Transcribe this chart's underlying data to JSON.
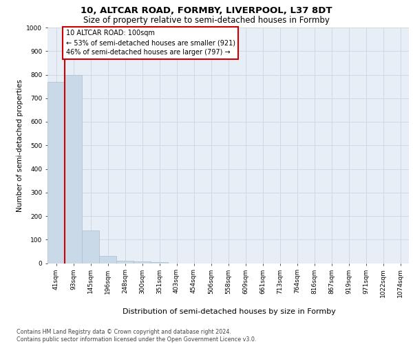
{
  "title1": "10, ALTCAR ROAD, FORMBY, LIVERPOOL, L37 8DT",
  "title2": "Size of property relative to semi-detached houses in Formby",
  "xlabel": "Distribution of semi-detached houses by size in Formby",
  "ylabel": "Number of semi-detached properties",
  "categories": [
    "41sqm",
    "93sqm",
    "145sqm",
    "196sqm",
    "248sqm",
    "300sqm",
    "351sqm",
    "403sqm",
    "454sqm",
    "506sqm",
    "558sqm",
    "609sqm",
    "661sqm",
    "713sqm",
    "764sqm",
    "816sqm",
    "867sqm",
    "919sqm",
    "971sqm",
    "1022sqm",
    "1074sqm"
  ],
  "values": [
    770,
    800,
    140,
    30,
    10,
    7,
    5,
    0,
    0,
    0,
    0,
    0,
    0,
    0,
    0,
    0,
    0,
    0,
    0,
    0,
    0
  ],
  "bar_color": "#c9d9e8",
  "bar_edge_color": "#a8bfd4",
  "vline_color": "#cc0000",
  "annotation_line1": "10 ALTCAR ROAD: 100sqm",
  "annotation_line2": "← 53% of semi-detached houses are smaller (921)",
  "annotation_line3": "46% of semi-detached houses are larger (797) →",
  "ylim_max": 1000,
  "yticks": [
    0,
    100,
    200,
    300,
    400,
    500,
    600,
    700,
    800,
    900,
    1000
  ],
  "grid_color": "#d0d8e4",
  "bg_color": "#e8eef5",
  "footnote": "Contains HM Land Registry data © Crown copyright and database right 2024.\nContains public sector information licensed under the Open Government Licence v3.0.",
  "title1_fontsize": 9.5,
  "title2_fontsize": 8.5,
  "xlabel_fontsize": 8,
  "ylabel_fontsize": 7.5,
  "tick_fontsize": 6.5,
  "annot_fontsize": 7,
  "footnote_fontsize": 5.8
}
